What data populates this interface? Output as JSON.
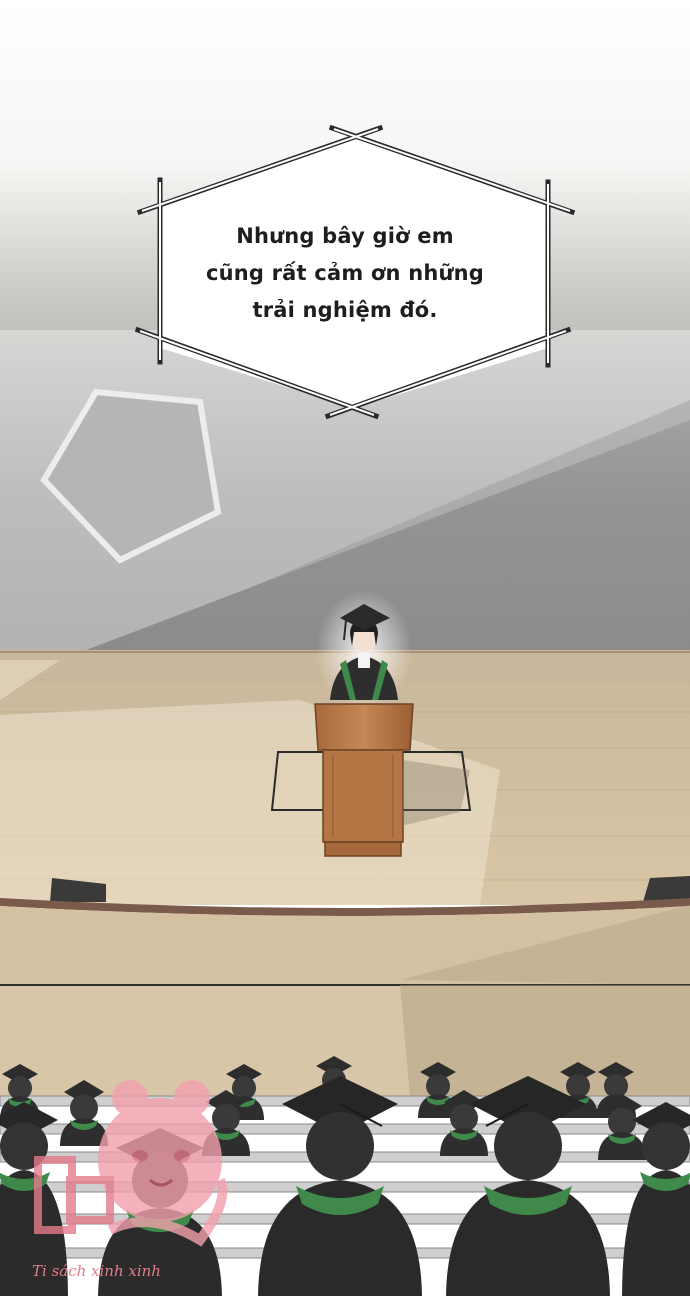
{
  "panel": {
    "speech_bubble": {
      "lines": [
        "Nhưng bây giờ em",
        "cũng rất cảm ơn những",
        "trải nghiệm đó."
      ]
    },
    "watermark": {
      "text": "Ti sách xinh xinh",
      "color": "#e47a8a"
    },
    "colors": {
      "sky_top": "#ffffff",
      "wall": "#a6a6a6",
      "stage_floor": "#dcc6a6",
      "podium": "#b8794a",
      "gown": "#2e2e2e",
      "stole": "#3f8a4a"
    }
  }
}
